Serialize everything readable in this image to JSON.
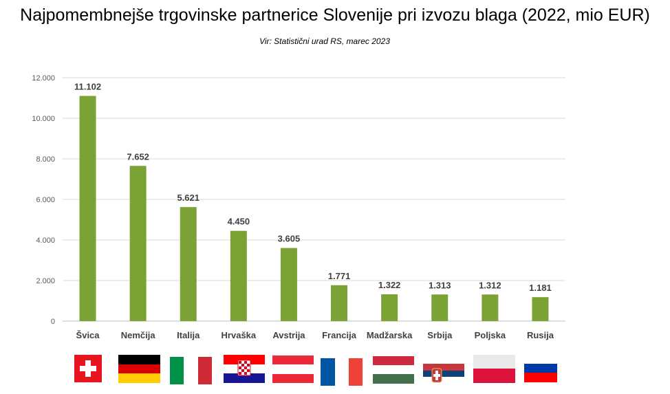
{
  "title": "Najpomembnejše trgovinske partnerice Slovenije pri izvozu blaga (2022, mio EUR)",
  "subtitle": "Vir: Statistični urad RS, marec 2023",
  "chart_data": {
    "type": "bar",
    "title": "Najpomembnejše trgovinske partnerice Slovenije pri izvozu blaga (2022, mio EUR)",
    "subtitle": "Vir: Statistični urad RS, marec 2023",
    "categories": [
      "Švica",
      "Nemčija",
      "Italija",
      "Hrvaška",
      "Avstrija",
      "Francija",
      "Madžarska",
      "Srbija",
      "Poljska",
      "Rusija"
    ],
    "values": [
      11102,
      7652,
      5621,
      4450,
      3605,
      1771,
      1322,
      1313,
      1312,
      1181
    ],
    "value_labels": [
      "11.102",
      "7.652",
      "5.621",
      "4.450",
      "3.605",
      "1.771",
      "1.322",
      "1.313",
      "1.312",
      "1.181"
    ],
    "ylim": [
      0,
      12000
    ],
    "yticks": [
      0,
      2000,
      4000,
      6000,
      8000,
      10000,
      12000
    ],
    "ytick_labels": [
      "0",
      "2.000",
      "4.000",
      "6.000",
      "8.000",
      "10.000",
      "12.000"
    ],
    "grid": true,
    "legend": "none",
    "bar_color": "#7aa235",
    "flags": [
      "switzerland-flag",
      "germany-flag",
      "italy-flag",
      "croatia-flag",
      "austria-flag",
      "france-flag",
      "hungary-flag",
      "serbia-flag",
      "poland-flag",
      "russia-flag"
    ]
  }
}
